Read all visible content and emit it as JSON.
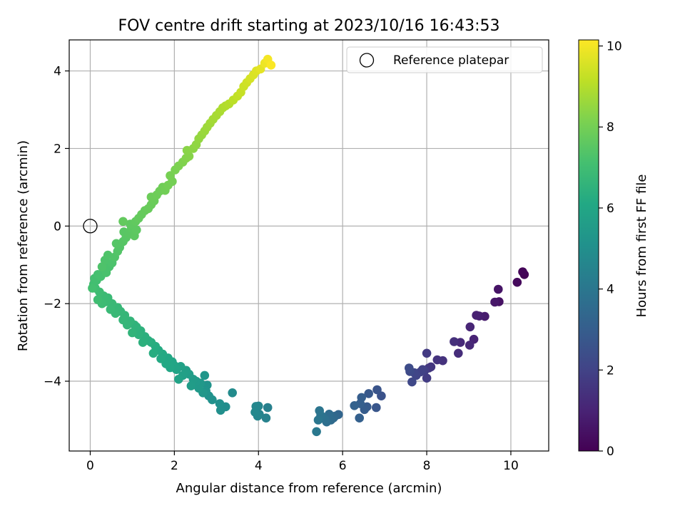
{
  "chart_data": {
    "type": "scatter",
    "title": "FOV centre drift starting at 2023/10/16 16:43:53",
    "xlabel": "Angular distance from reference (arcmin)",
    "ylabel": "Rotation from reference (arcmin)",
    "xlim": [
      -0.5,
      10.9
    ],
    "ylim": [
      -5.8,
      4.8
    ],
    "xticks": [
      0,
      2,
      4,
      6,
      8,
      10
    ],
    "yticks": [
      -4,
      -2,
      0,
      2,
      4
    ],
    "grid": true,
    "legend": {
      "position": "top-right",
      "entries": [
        "Reference platepar"
      ]
    },
    "reference_point": {
      "name": "Reference platepar",
      "x": 0,
      "y": 0
    },
    "colorbar": {
      "label": "Hours from first FF file",
      "range": [
        0,
        10.15
      ],
      "ticks": [
        0,
        2,
        4,
        6,
        8,
        10
      ],
      "colormap": "viridis"
    },
    "series": [
      {
        "color_by": "Hours from first FF file",
        "points": [
          [
            10.32,
            -1.25,
            0.05
          ],
          [
            10.28,
            -1.18,
            0.12
          ],
          [
            10.15,
            -1.45,
            0.25
          ],
          [
            9.72,
            -1.95,
            0.45
          ],
          [
            9.7,
            -1.63,
            0.55
          ],
          [
            9.62,
            -1.96,
            0.65
          ],
          [
            9.38,
            -2.33,
            0.78
          ],
          [
            9.25,
            -2.32,
            0.85
          ],
          [
            9.18,
            -2.3,
            0.92
          ],
          [
            9.12,
            -2.92,
            1.0
          ],
          [
            9.03,
            -2.6,
            1.08
          ],
          [
            9.02,
            -3.07,
            1.15
          ],
          [
            8.8,
            -3.0,
            1.22
          ],
          [
            8.75,
            -3.28,
            1.3
          ],
          [
            8.65,
            -2.98,
            1.38
          ],
          [
            8.38,
            -3.47,
            1.45
          ],
          [
            8.25,
            -3.45,
            1.52
          ],
          [
            8.1,
            -3.63,
            1.58
          ],
          [
            8.05,
            -3.66,
            1.65
          ],
          [
            8.0,
            -3.28,
            1.72
          ],
          [
            8.0,
            -3.92,
            1.78
          ],
          [
            7.95,
            -3.73,
            1.85
          ],
          [
            7.9,
            -3.7,
            1.92
          ],
          [
            7.85,
            -3.76,
            1.98
          ],
          [
            7.75,
            -3.85,
            2.05
          ],
          [
            7.7,
            -3.78,
            2.12
          ],
          [
            7.65,
            -4.02,
            2.18
          ],
          [
            7.6,
            -3.75,
            2.25
          ],
          [
            7.58,
            -3.66,
            2.32
          ],
          [
            6.92,
            -4.38,
            2.55
          ],
          [
            6.82,
            -4.22,
            2.62
          ],
          [
            6.8,
            -4.68,
            2.7
          ],
          [
            6.62,
            -4.32,
            2.78
          ],
          [
            6.58,
            -4.66,
            2.85
          ],
          [
            6.52,
            -4.73,
            2.92
          ],
          [
            6.45,
            -4.42,
            3.0
          ],
          [
            6.42,
            -4.58,
            3.05
          ],
          [
            6.4,
            -4.95,
            3.1
          ],
          [
            6.28,
            -4.63,
            3.18
          ],
          [
            5.9,
            -4.86,
            3.3
          ],
          [
            5.82,
            -4.9,
            3.38
          ],
          [
            5.78,
            -4.95,
            3.45
          ],
          [
            5.72,
            -5.0,
            3.52
          ],
          [
            5.68,
            -4.85,
            3.58
          ],
          [
            5.62,
            -5.05,
            3.65
          ],
          [
            5.58,
            -4.98,
            3.72
          ],
          [
            5.52,
            -4.92,
            3.78
          ],
          [
            5.48,
            -4.88,
            3.85
          ],
          [
            5.45,
            -4.76,
            3.92
          ],
          [
            5.42,
            -5.0,
            3.98
          ],
          [
            5.38,
            -5.3,
            4.05
          ],
          [
            4.22,
            -4.68,
            4.4
          ],
          [
            4.18,
            -4.95,
            4.45
          ],
          [
            4.02,
            -4.85,
            4.52
          ],
          [
            4.0,
            -4.64,
            4.58
          ],
          [
            3.98,
            -4.9,
            4.62
          ],
          [
            3.94,
            -4.65,
            4.68
          ],
          [
            3.92,
            -4.8,
            4.72
          ],
          [
            3.38,
            -4.3,
            4.85
          ],
          [
            3.22,
            -4.66,
            4.92
          ],
          [
            3.1,
            -4.75,
            4.98
          ],
          [
            3.08,
            -4.58,
            5.02
          ],
          [
            2.9,
            -4.48,
            5.08
          ],
          [
            2.82,
            -4.38,
            5.12
          ],
          [
            2.78,
            -4.1,
            5.18
          ],
          [
            2.75,
            -4.25,
            5.22
          ],
          [
            2.72,
            -3.85,
            5.28
          ],
          [
            2.68,
            -4.3,
            5.32
          ],
          [
            2.62,
            -4.05,
            5.38
          ],
          [
            2.58,
            -4.18,
            5.42
          ],
          [
            2.52,
            -4.0,
            5.48
          ],
          [
            2.45,
            -3.95,
            5.52
          ],
          [
            2.4,
            -4.12,
            5.58
          ],
          [
            2.35,
            -3.82,
            5.62
          ],
          [
            2.28,
            -3.72,
            5.68
          ],
          [
            2.2,
            -3.85,
            5.72
          ],
          [
            2.15,
            -3.62,
            5.78
          ],
          [
            2.1,
            -3.95,
            5.82
          ],
          [
            2.05,
            -3.7,
            5.85
          ],
          [
            2.0,
            -3.6,
            5.9
          ],
          [
            1.95,
            -3.5,
            5.95
          ],
          [
            1.9,
            -3.65,
            6.0
          ],
          [
            1.85,
            -3.4,
            6.05
          ],
          [
            1.8,
            -3.55,
            6.08
          ],
          [
            1.72,
            -3.3,
            6.12
          ],
          [
            1.68,
            -3.42,
            6.15
          ],
          [
            1.62,
            -3.2,
            6.2
          ],
          [
            1.55,
            -3.1,
            6.25
          ],
          [
            1.5,
            -3.28,
            6.28
          ],
          [
            1.45,
            -3.0,
            6.32
          ],
          [
            1.38,
            -2.95,
            6.35
          ],
          [
            1.3,
            -2.85,
            6.4
          ],
          [
            1.25,
            -3.0,
            6.42
          ],
          [
            1.2,
            -2.7,
            6.45
          ],
          [
            1.15,
            -2.8,
            6.48
          ],
          [
            1.1,
            -2.6,
            6.52
          ],
          [
            1.05,
            -2.55,
            6.55
          ],
          [
            1.0,
            -2.75,
            6.58
          ],
          [
            0.95,
            -2.45,
            6.62
          ],
          [
            0.88,
            -2.55,
            6.65
          ],
          [
            0.82,
            -2.3,
            6.68
          ],
          [
            0.78,
            -2.42,
            6.7
          ],
          [
            0.72,
            -2.2,
            6.72
          ],
          [
            0.65,
            -2.1,
            6.75
          ],
          [
            0.6,
            -2.25,
            6.78
          ],
          [
            0.52,
            -2.0,
            6.8
          ],
          [
            0.48,
            -2.15,
            6.82
          ],
          [
            0.42,
            -1.85,
            6.85
          ],
          [
            0.38,
            -1.95,
            6.88
          ],
          [
            0.32,
            -1.8,
            6.9
          ],
          [
            0.28,
            -2.0,
            6.92
          ],
          [
            0.22,
            -1.7,
            6.95
          ],
          [
            0.18,
            -1.9,
            6.98
          ],
          [
            0.12,
            -1.6,
            7.0
          ],
          [
            0.08,
            -1.5,
            7.02
          ],
          [
            0.15,
            -1.4,
            7.05
          ],
          [
            0.1,
            -1.35,
            7.08
          ],
          [
            0.05,
            -1.6,
            7.1
          ],
          [
            0.18,
            -1.25,
            7.12
          ],
          [
            0.25,
            -1.3,
            7.15
          ],
          [
            0.32,
            -1.1,
            7.18
          ],
          [
            0.38,
            -1.2,
            7.2
          ],
          [
            0.45,
            -1.05,
            7.22
          ],
          [
            0.52,
            -0.95,
            7.25
          ],
          [
            0.35,
            -0.88,
            7.28
          ],
          [
            0.28,
            -1.05,
            7.3
          ],
          [
            0.42,
            -0.75,
            7.32
          ],
          [
            0.58,
            -0.8,
            7.35
          ],
          [
            0.65,
            -0.65,
            7.38
          ],
          [
            0.7,
            -0.55,
            7.4
          ],
          [
            0.62,
            -0.45,
            7.42
          ],
          [
            0.78,
            -0.4,
            7.45
          ],
          [
            0.85,
            -0.3,
            7.48
          ],
          [
            0.8,
            -0.15,
            7.5
          ],
          [
            0.92,
            -0.2,
            7.52
          ],
          [
            0.98,
            -0.05,
            7.55
          ],
          [
            1.05,
            -0.25,
            7.58
          ],
          [
            1.1,
            -0.1,
            7.6
          ],
          [
            0.95,
            0.05,
            7.62
          ],
          [
            1.08,
            0.12,
            7.65
          ],
          [
            0.78,
            0.12,
            7.68
          ],
          [
            1.15,
            0.2,
            7.7
          ],
          [
            1.22,
            0.3,
            7.72
          ],
          [
            1.3,
            0.4,
            7.75
          ],
          [
            1.38,
            0.45,
            7.78
          ],
          [
            1.45,
            0.55,
            7.8
          ],
          [
            1.52,
            0.65,
            7.82
          ],
          [
            1.45,
            0.75,
            7.85
          ],
          [
            1.58,
            0.8,
            7.88
          ],
          [
            1.65,
            0.9,
            7.9
          ],
          [
            1.72,
            1.0,
            7.92
          ],
          [
            1.78,
            0.92,
            7.95
          ],
          [
            1.85,
            1.05,
            7.98
          ],
          [
            1.95,
            1.15,
            8.0
          ],
          [
            1.9,
            1.3,
            8.05
          ],
          [
            2.02,
            1.45,
            8.1
          ],
          [
            2.1,
            1.55,
            8.15
          ],
          [
            2.2,
            1.65,
            8.2
          ],
          [
            2.28,
            1.75,
            8.25
          ],
          [
            2.35,
            1.8,
            8.3
          ],
          [
            2.3,
            1.95,
            8.35
          ],
          [
            2.45,
            2.0,
            8.4
          ],
          [
            2.52,
            2.1,
            8.45
          ],
          [
            2.58,
            2.25,
            8.5
          ],
          [
            2.65,
            2.35,
            8.55
          ],
          [
            2.72,
            2.45,
            8.6
          ],
          [
            2.78,
            2.55,
            8.65
          ],
          [
            2.85,
            2.65,
            8.7
          ],
          [
            2.92,
            2.75,
            8.75
          ],
          [
            3.0,
            2.85,
            8.8
          ],
          [
            3.08,
            2.95,
            8.85
          ],
          [
            3.15,
            3.05,
            8.9
          ],
          [
            3.22,
            3.1,
            8.95
          ],
          [
            3.3,
            3.15,
            9.0
          ],
          [
            3.4,
            3.25,
            9.1
          ],
          [
            3.5,
            3.35,
            9.2
          ],
          [
            3.58,
            3.45,
            9.28
          ],
          [
            3.65,
            3.6,
            9.35
          ],
          [
            3.72,
            3.7,
            9.42
          ],
          [
            3.8,
            3.8,
            9.5
          ],
          [
            3.88,
            3.9,
            9.58
          ],
          [
            3.95,
            4.0,
            9.65
          ],
          [
            4.05,
            4.05,
            9.75
          ],
          [
            4.15,
            4.2,
            9.9
          ],
          [
            4.22,
            4.3,
            10.0
          ],
          [
            4.3,
            4.15,
            10.1
          ]
        ]
      }
    ]
  }
}
